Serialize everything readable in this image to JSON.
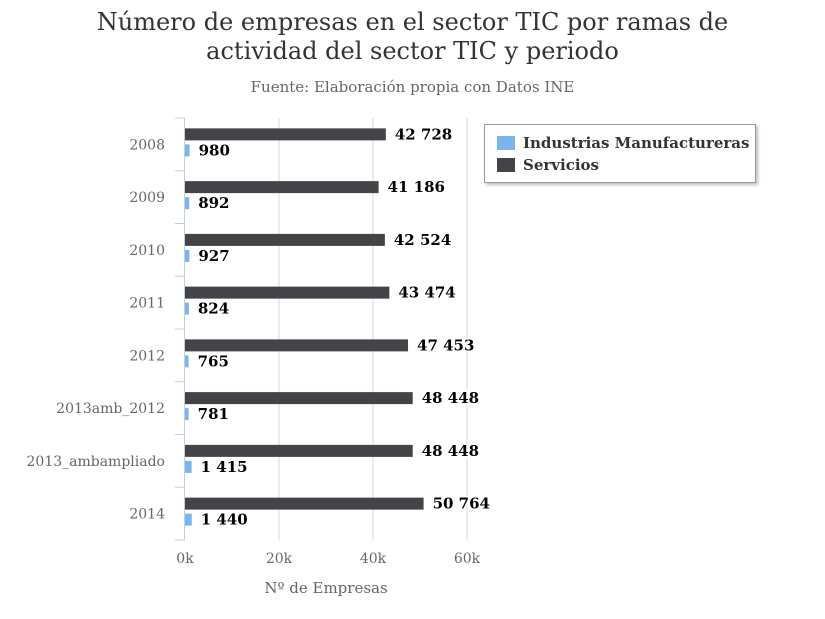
{
  "chart_data": {
    "type": "bar",
    "orientation": "horizontal",
    "title_line1": "Número de empresas en el sector TIC por ramas de",
    "title_line2": "actividad del sector TIC y periodo",
    "subtitle": "Fuente: Elaboración propia con Datos INE",
    "xlabel": "Nº de Empresas",
    "ylabel": "",
    "xlim": [
      0,
      60000
    ],
    "x_ticks": [
      "0k",
      "20k",
      "40k",
      "60k"
    ],
    "categories": [
      "2008",
      "2009",
      "2010",
      "2011",
      "2012",
      "2013amb_2012",
      "2013_ambampliado",
      "2014"
    ],
    "series": [
      {
        "name": "Industrias Manufactureras",
        "color": "#7cb5ec",
        "values": [
          980,
          892,
          927,
          824,
          765,
          781,
          1415,
          1440
        ],
        "labels": [
          "980",
          "892",
          "927",
          "824",
          "765",
          "781",
          "1 415",
          "1 440"
        ]
      },
      {
        "name": "Servicios",
        "color": "#434348",
        "values": [
          42728,
          41186,
          42524,
          43474,
          47453,
          48448,
          48448,
          50764
        ],
        "labels": [
          "42 728",
          "41 186",
          "42 524",
          "43 474",
          "47 453",
          "48 448",
          "48 448",
          "50 764"
        ]
      }
    ],
    "grid": true,
    "legend_position": "top-right"
  }
}
